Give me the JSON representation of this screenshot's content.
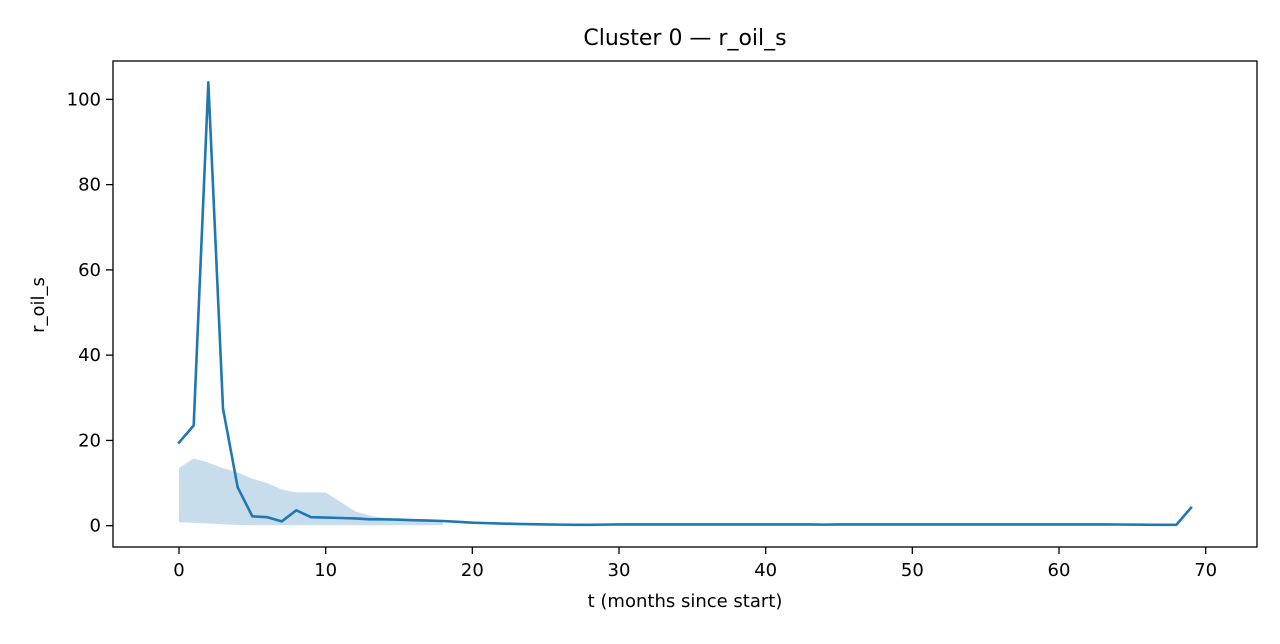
{
  "chart_data": {
    "type": "line",
    "title": "Cluster 0 — r_oil_s",
    "xlabel": "t (months since start)",
    "ylabel": "r_oil_s",
    "xlim": [
      -4.5,
      73.5
    ],
    "ylim": [
      -5.0,
      109.0
    ],
    "xticks": [
      0,
      10,
      20,
      30,
      40,
      50,
      60,
      70
    ],
    "yticks": [
      0,
      20,
      40,
      60,
      80,
      100
    ],
    "grid": false,
    "legend": null,
    "series": [
      {
        "color": "#1f77b4",
        "x": [
          0,
          1,
          2,
          3,
          4,
          5,
          6,
          7,
          8,
          9,
          10,
          11,
          12,
          13,
          14,
          15,
          16,
          17,
          18,
          19,
          20,
          21,
          22,
          23,
          24,
          25,
          26,
          27,
          28,
          29,
          30,
          31,
          32,
          33,
          34,
          35,
          36,
          37,
          38,
          39,
          40,
          41,
          42,
          43,
          44,
          45,
          46,
          47,
          48,
          49,
          50,
          51,
          52,
          53,
          54,
          55,
          56,
          57,
          58,
          59,
          60,
          61,
          62,
          63,
          64,
          65,
          66,
          67,
          68,
          69
        ],
        "y": [
          19.5,
          23.5,
          104,
          27.5,
          9,
          2.2,
          2,
          1,
          3.6,
          2,
          1.9,
          1.8,
          1.7,
          1.5,
          1.5,
          1.4,
          1.3,
          1.2,
          1.1,
          0.9,
          0.7,
          0.6,
          0.5,
          0.4,
          0.35,
          0.3,
          0.25,
          0.2,
          0.2,
          0.25,
          0.3,
          0.3,
          0.3,
          0.3,
          0.3,
          0.3,
          0.3,
          0.3,
          0.3,
          0.3,
          0.3,
          0.3,
          0.3,
          0.3,
          0.25,
          0.3,
          0.3,
          0.3,
          0.3,
          0.3,
          0.3,
          0.3,
          0.3,
          0.3,
          0.3,
          0.3,
          0.3,
          0.3,
          0.3,
          0.3,
          0.3,
          0.3,
          0.3,
          0.3,
          0.28,
          0.25,
          0.22,
          0.2,
          0.2,
          4.2
        ]
      }
    ],
    "band": {
      "color": "#1f77b4",
      "opacity": 0.25,
      "x": [
        0,
        1,
        2,
        3,
        4,
        5,
        6,
        7,
        8,
        9,
        10,
        11,
        12,
        13,
        14,
        15,
        16,
        17,
        18
      ],
      "upper": [
        13.5,
        15.8,
        14.8,
        13.5,
        12.5,
        11,
        10,
        8.5,
        7.8,
        7.8,
        7.8,
        5.6,
        3.4,
        2.4,
        1.8,
        1.5,
        1.3,
        1.1,
        0.9
      ],
      "lower": [
        0.8,
        0.7,
        0.5,
        0.3,
        0.2,
        0.1,
        0.1,
        0.1,
        0.1,
        0.1,
        0.1,
        0.1,
        0.1,
        0.1,
        0.1,
        0.1,
        0.1,
        0.1,
        0.1
      ]
    }
  }
}
